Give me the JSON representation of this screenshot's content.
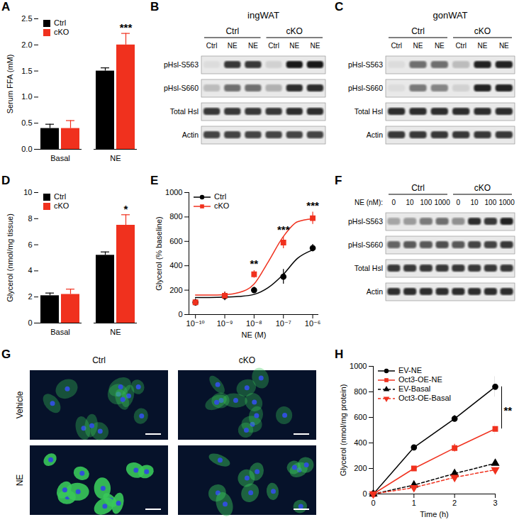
{
  "chart_data": [
    {
      "panel": "A",
      "type": "bar",
      "categories": [
        "Basal",
        "NE"
      ],
      "y_label": "Serum FFA (mM)",
      "ylim": [
        0,
        2.5
      ],
      "yticks": [
        {
          "value": 0,
          "label": "0.0"
        },
        0.5,
        {
          "value": 1,
          "label": "1.0"
        },
        1.5,
        {
          "value": 2,
          "label": "2.0"
        },
        2.5
      ],
      "legend": "top-left",
      "series": [
        {
          "name": "Ctrl",
          "color": "#000000",
          "values": [
            0.4,
            1.5
          ],
          "errors": [
            0.08,
            0.06
          ]
        },
        {
          "name": "cKO",
          "color": "#f0311e",
          "values": [
            0.4,
            2.0
          ],
          "errors": [
            0.15,
            0.22
          ]
        }
      ],
      "annotations": [
        {
          "category": "NE",
          "series": "cKO",
          "text": "***"
        }
      ]
    },
    {
      "panel": "D",
      "type": "bar",
      "categories": [
        "Basal",
        "NE"
      ],
      "y_label": "Glycerol (nmol/mg tissue)",
      "ylim": [
        0,
        10
      ],
      "yticks": [
        0,
        2,
        4,
        6,
        8,
        10
      ],
      "legend": "top-left",
      "series": [
        {
          "name": "Ctrl",
          "color": "#000000",
          "values": [
            2.1,
            5.2
          ],
          "errors": [
            0.2,
            0.25
          ]
        },
        {
          "name": "cKO",
          "color": "#f0311e",
          "values": [
            2.2,
            7.5
          ],
          "errors": [
            0.4,
            0.8
          ]
        }
      ],
      "annotations": [
        {
          "category": "NE",
          "series": "cKO",
          "text": "*"
        }
      ]
    },
    {
      "panel": "E",
      "type": "scatter",
      "log": "x",
      "x_label": "NE (M)",
      "y_label": "Glycerol (% baseline)",
      "x": [
        1e-10,
        1e-09,
        1e-08,
        1e-07,
        1e-06
      ],
      "xlim": [
        6e-11,
        1.6e-06
      ],
      "xticks": [
        {
          "value": 1e-10,
          "label": "10⁻¹⁰"
        },
        {
          "value": 1e-09,
          "label": "10⁻⁹"
        },
        {
          "value": 1e-08,
          "label": "10⁻⁸"
        },
        {
          "value": 1e-07,
          "label": "10⁻⁷"
        },
        {
          "value": 1e-06,
          "label": "10⁻⁶"
        }
      ],
      "ylim": [
        0,
        1000
      ],
      "yticks": [
        0,
        200,
        400,
        600,
        800,
        1000
      ],
      "legend": "top-left",
      "series": [
        {
          "name": "Ctrl",
          "color": "#000000",
          "marker": "circle",
          "values": [
            100,
            150,
            200,
            310,
            545
          ],
          "errors": [
            30,
            35,
            25,
            60,
            30
          ],
          "fit": {
            "x": [
              1e-10,
              3e-10,
              1e-09,
              3e-09,
              1e-08,
              3e-08,
              1e-07,
              3e-07,
              1e-06
            ],
            "values": [
              140,
              140,
              142,
              148,
              165,
              220,
              330,
              460,
              530
            ]
          }
        },
        {
          "name": "cKO",
          "color": "#f0311e",
          "marker": "square",
          "values": [
            100,
            155,
            330,
            590,
            790
          ],
          "errors": [
            15,
            30,
            30,
            50,
            50
          ],
          "fit": {
            "x": [
              1e-10,
              3e-10,
              1e-09,
              3e-09,
              1e-08,
              3e-08,
              1e-07,
              3e-07,
              1e-06
            ],
            "values": [
              160,
              160,
              163,
              180,
              250,
              430,
              640,
              760,
              785
            ]
          }
        }
      ],
      "annotations": [
        {
          "x": 1e-08,
          "text": "**"
        },
        {
          "x": 1e-07,
          "text": "***"
        },
        {
          "x": 1e-06,
          "text": "***"
        }
      ]
    },
    {
      "panel": "H",
      "type": "line",
      "x_label": "Time (h)",
      "y_label": "Glycerol (nmol/mg protein)",
      "x": [
        0,
        1,
        2,
        3
      ],
      "xlim": [
        0,
        3
      ],
      "xticks": [
        0,
        1,
        2,
        3
      ],
      "ylim": [
        0,
        1000
      ],
      "yticks": [
        0,
        200,
        400,
        600,
        800,
        1000
      ],
      "legend": "top-left",
      "series": [
        {
          "name": "EV-NE",
          "color": "#000000",
          "marker": "circle",
          "line_style": "solid",
          "values": [
            0,
            365,
            590,
            840
          ],
          "errors": [
            0,
            15,
            25,
            80
          ]
        },
        {
          "name": "Oct3-OE-NE",
          "color": "#f0311e",
          "marker": "square",
          "line_style": "solid",
          "values": [
            0,
            200,
            360,
            510
          ],
          "errors": [
            0,
            15,
            30,
            45
          ]
        },
        {
          "name": "EV-Basal",
          "color": "#000000",
          "marker": "triangle",
          "line_style": "dashed",
          "values": [
            0,
            70,
            160,
            240
          ],
          "errors": [
            0,
            10,
            10,
            10
          ]
        },
        {
          "name": "Oct3-OE-Basal",
          "color": "#f0311e",
          "marker": "triangle-down",
          "line_style": "dashed",
          "values": [
            0,
            50,
            130,
            190
          ],
          "errors": [
            0,
            8,
            10,
            10
          ]
        }
      ],
      "annotations": [
        {
          "x": 3,
          "series": [
            "EV-NE",
            "Oct3-OE-NE"
          ],
          "text": "**"
        }
      ]
    }
  ],
  "blots": [
    {
      "panel": "B",
      "title": "ingWAT",
      "groups": [
        "Ctrl",
        "cKO"
      ],
      "lanes": [
        "Ctrl",
        "NE",
        "NE",
        "Ctrl",
        "NE",
        "NE"
      ],
      "rows": [
        {
          "label": "pHsl-S563",
          "intensity": [
            0.05,
            0.8,
            0.8,
            0.1,
            0.95,
            0.95
          ]
        },
        {
          "label": "pHsl-S660",
          "intensity": [
            0.2,
            0.55,
            0.55,
            0.25,
            0.85,
            0.85
          ]
        },
        {
          "label": "Total Hsl",
          "intensity": [
            0.8,
            0.8,
            0.8,
            0.8,
            0.85,
            0.85
          ]
        },
        {
          "label": "Actin",
          "intensity": [
            0.75,
            0.75,
            0.75,
            0.75,
            0.75,
            0.75
          ]
        }
      ]
    },
    {
      "panel": "C",
      "title": "gonWAT",
      "groups": [
        "Ctrl",
        "cKO"
      ],
      "lanes": [
        "Ctrl",
        "NE",
        "NE",
        "Ctrl",
        "NE",
        "NE"
      ],
      "rows": [
        {
          "label": "pHsl-S563",
          "intensity": [
            0.05,
            0.55,
            0.55,
            0.2,
            0.9,
            0.9
          ]
        },
        {
          "label": "pHsl-S660",
          "intensity": [
            0.05,
            0.5,
            0.45,
            0.1,
            0.9,
            0.9
          ]
        },
        {
          "label": "Total Hsl",
          "intensity": [
            0.85,
            0.85,
            0.85,
            0.85,
            0.85,
            0.85
          ]
        },
        {
          "label": "Actin",
          "intensity": [
            0.8,
            0.8,
            0.8,
            0.8,
            0.8,
            0.8
          ]
        }
      ]
    },
    {
      "panel": "F",
      "groups": [
        "Ctrl",
        "cKO"
      ],
      "lane_header": "NE (nM):",
      "lanes": [
        0,
        10,
        100,
        1000,
        0,
        10,
        100,
        1000
      ],
      "rows": [
        {
          "label": "pHsl-S563",
          "intensity": [
            0.3,
            0.35,
            0.5,
            0.55,
            0.4,
            0.85,
            0.8,
            0.9
          ]
        },
        {
          "label": "pHsl-S660",
          "intensity": [
            0.6,
            0.65,
            0.65,
            0.7,
            0.65,
            0.75,
            0.75,
            0.8
          ]
        },
        {
          "label": "Total Hsl",
          "intensity": [
            0.8,
            0.8,
            0.8,
            0.8,
            0.8,
            0.8,
            0.8,
            0.8
          ]
        },
        {
          "label": "Actin",
          "intensity": [
            0.85,
            0.85,
            0.85,
            0.85,
            0.85,
            0.85,
            0.85,
            0.85
          ]
        }
      ]
    }
  ],
  "images": {
    "panel": "G",
    "columns": [
      "Ctrl",
      "cKO"
    ],
    "rows": [
      "Vehicle",
      "NE"
    ],
    "green_intensity": [
      [
        0.35,
        0.35
      ],
      [
        0.9,
        0.45
      ]
    ]
  }
}
